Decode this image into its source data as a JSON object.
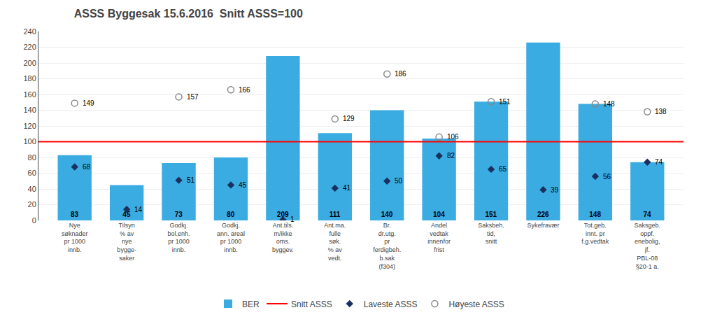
{
  "chart_data": {
    "type": "bar",
    "title": "ASSS Byggesak 15.6.2016  Snitt ASSS=100",
    "categories": [
      "Nye\nsøknader\npr 1000\ninnb.",
      "Tilsyn\n% av\nnye\nbygge-\nsaker",
      "Godkj.\nbol.enh.\npr 1000\ninnb.",
      "Godkj.\nann. areal\npr 1000\ninnb.",
      "Ant.tils.\nm/ikke\noms.\nbyggev.",
      "Ant.ma.\nfulle\nsøk.\n% av\nvedt.",
      "Br.\ndr.utg.\npr\nferdigbeh.\nb.sak\n(f304)",
      "Andel\nvedtak\ninnenfor\nfrist",
      "Saksbeh.\ntid,\nsnitt",
      "Sykefravær",
      "Tot.geb.\ninnt. pr\nf.g.vedtak",
      "Saksgeb.\noppf.\nenebolig,\njf.\nPBL-08\n§20-1 a."
    ],
    "series": [
      {
        "name": "BER",
        "type": "bar",
        "color": "#3aace2",
        "data_labels": true,
        "values": [
          83,
          45,
          73,
          80,
          209,
          111,
          140,
          104,
          151,
          226,
          148,
          74
        ]
      },
      {
        "name": "Laveste ASSS",
        "type": "scatter",
        "marker": "diamond",
        "color": "#1a3060",
        "data_labels": true,
        "values": [
          68,
          14,
          51,
          45,
          1,
          41,
          50,
          82,
          65,
          39,
          56,
          74
        ]
      },
      {
        "name": "Høyeste ASSS",
        "type": "scatter",
        "marker": "circle-open",
        "color": "#888888",
        "data_labels": true,
        "values": [
          149,
          null,
          157,
          166,
          null,
          129,
          186,
          106,
          151,
          null,
          148,
          138
        ]
      }
    ],
    "hline": {
      "name": "Snitt ASSS",
      "value": 100,
      "color": "red"
    },
    "ylim": [
      0,
      240
    ],
    "yticks": [
      0,
      20,
      40,
      60,
      80,
      100,
      120,
      140,
      160,
      180,
      200,
      220,
      240
    ],
    "grid": true,
    "legend": "bottom"
  }
}
